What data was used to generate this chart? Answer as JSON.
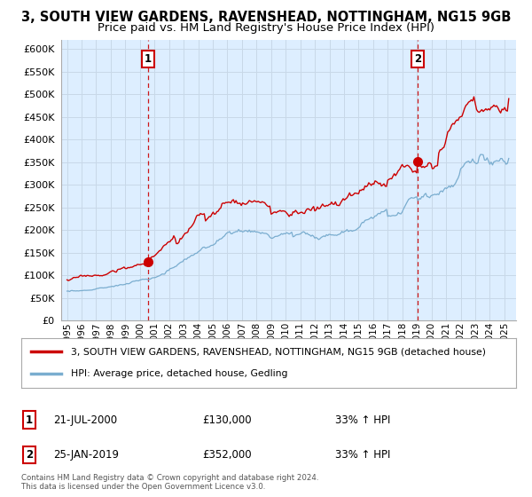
{
  "title": "3, SOUTH VIEW GARDENS, RAVENSHEAD, NOTTINGHAM, NG15 9GB",
  "subtitle": "Price paid vs. HM Land Registry's House Price Index (HPI)",
  "title_fontsize": 10.5,
  "subtitle_fontsize": 9.5,
  "ylim": [
    0,
    620000
  ],
  "yticks": [
    0,
    50000,
    100000,
    150000,
    200000,
    250000,
    300000,
    350000,
    400000,
    450000,
    500000,
    550000,
    600000
  ],
  "xlim_start": 1994.6,
  "xlim_end": 2025.8,
  "sale1_x": 2000.55,
  "sale1_y": 130000,
  "sale2_x": 2019.07,
  "sale2_y": 352000,
  "red_color": "#cc0000",
  "blue_color": "#7aadcf",
  "vline_color": "#cc0000",
  "grid_color": "#c8d8e8",
  "chart_bg": "#ddeeff",
  "background_color": "#ffffff",
  "legend_label_red": "3, SOUTH VIEW GARDENS, RAVENSHEAD, NOTTINGHAM, NG15 9GB (detached house)",
  "legend_label_blue": "HPI: Average price, detached house, Gedling",
  "sale1_date": "21-JUL-2000",
  "sale1_price": "£130,000",
  "sale1_hpi": "33% ↑ HPI",
  "sale2_date": "25-JAN-2019",
  "sale2_price": "£352,000",
  "sale2_hpi": "33% ↑ HPI",
  "footer": "Contains HM Land Registry data © Crown copyright and database right 2024.\nThis data is licensed under the Open Government Licence v3.0."
}
